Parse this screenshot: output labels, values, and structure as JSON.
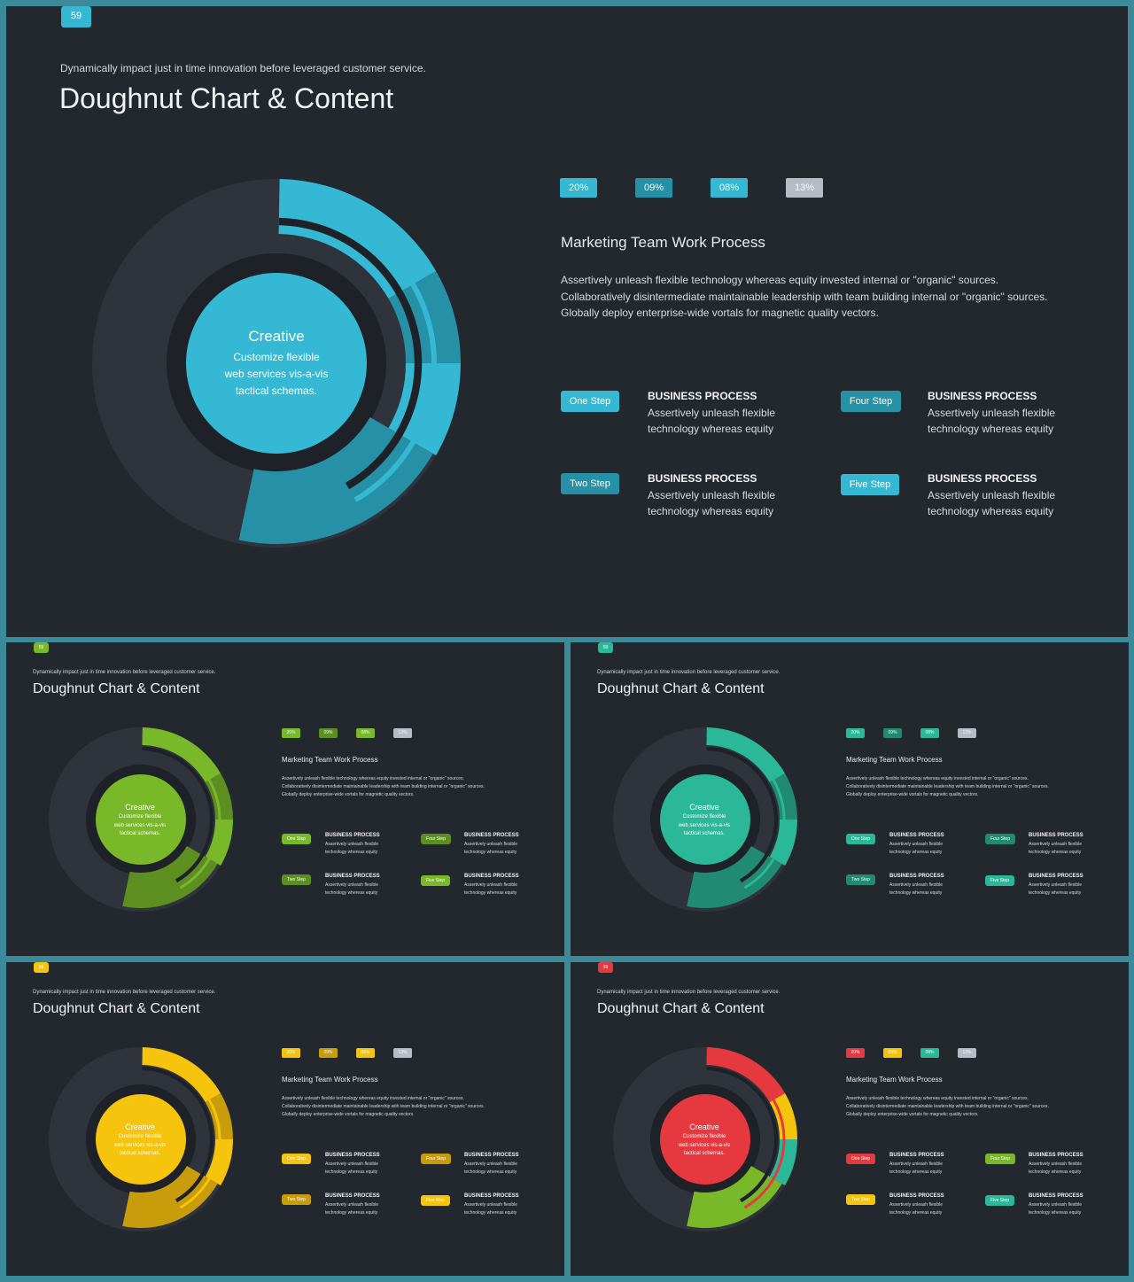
{
  "page_number": "59",
  "subtitle": "Dynamically impact just in time innovation  before leveraged customer service.",
  "title": "Doughnut Chart & Content",
  "percentages": [
    "20%",
    "09%",
    "08%",
    "13%"
  ],
  "section_heading": "Marketing  Team Work Process",
  "paragraph": [
    "Assertively unleash flexible technology whereas equity invested internal or \"organic\" sources.",
    "Collaboratively disintermediate maintainable leadership with team building internal or \"organic\" sources.",
    "Globally deploy enterprise-wide vortals for magnetic quality vectors."
  ],
  "center": {
    "title": "Creative",
    "lines": [
      "Customize flexible",
      "web services vis-a-vis",
      "tactical schemas."
    ]
  },
  "steps": [
    {
      "label": "One Step",
      "title": "BUSINESS PROCESS",
      "desc1": "Assertively unleash flexible",
      "desc2": "technology whereas equity"
    },
    {
      "label": "Four Step",
      "title": "BUSINESS PROCESS",
      "desc1": "Assertively unleash flexible",
      "desc2": "technology whereas equity"
    },
    {
      "label": "Two Step",
      "title": "BUSINESS PROCESS",
      "desc1": "Assertively unleash flexible",
      "desc2": "technology whereas equity"
    },
    {
      "label": "Five Step",
      "title": "BUSINESS PROCESS",
      "desc1": "Assertively unleash flexible",
      "desc2": "technology whereas equity"
    }
  ],
  "chart_data": [
    {
      "type": "pie",
      "variant": "doughnut",
      "slide": "main",
      "colors": [
        "#35b8d3",
        "#2690a6",
        "#35b8d3",
        "#2690a6"
      ],
      "center_color": "#35b8d3",
      "step_colors": [
        "#35b8d3",
        "#2690a6",
        "#2690a6",
        "#35b8d3"
      ],
      "pct_colors": [
        "#35b8d3",
        "#2690a6",
        "#35b8d3",
        "#b6bcc5"
      ],
      "background_ring_color": "#2f333b"
    },
    {
      "type": "pie",
      "variant": "doughnut",
      "slide": "green",
      "colors": [
        "#79b828",
        "#5c8f1f",
        "#79b828",
        "#5c8f1f"
      ],
      "center_color": "#79b828",
      "step_colors": [
        "#79b828",
        "#5c8f1f",
        "#5c8f1f",
        "#79b828"
      ],
      "pct_colors": [
        "#79b828",
        "#5c8f1f",
        "#79b828",
        "#b6bcc5"
      ],
      "background_ring_color": "#2f333b"
    },
    {
      "type": "pie",
      "variant": "doughnut",
      "slide": "teal",
      "colors": [
        "#2bb898",
        "#218a73",
        "#2bb898",
        "#218a73"
      ],
      "center_color": "#2bb898",
      "step_colors": [
        "#2bb898",
        "#218a73",
        "#218a73",
        "#2bb898"
      ],
      "pct_colors": [
        "#2bb898",
        "#218a73",
        "#2bb898",
        "#b6bcc5"
      ],
      "background_ring_color": "#2f333b"
    },
    {
      "type": "pie",
      "variant": "doughnut",
      "slide": "yellow",
      "colors": [
        "#f6c40c",
        "#c89c0a",
        "#f6c40c",
        "#c89c0a"
      ],
      "center_color": "#f6c40c",
      "step_colors": [
        "#f6c40c",
        "#c89c0a",
        "#c89c0a",
        "#f6c40c"
      ],
      "pct_colors": [
        "#f6c40c",
        "#c89c0a",
        "#f6c40c",
        "#b6bcc5"
      ],
      "background_ring_color": "#2f333b"
    },
    {
      "type": "pie",
      "variant": "doughnut",
      "slide": "red",
      "colors": [
        "#e5393f",
        "#f6c40c",
        "#2bb898",
        "#79b828"
      ],
      "center_color": "#e5393f",
      "step_colors": [
        "#e5393f",
        "#79b828",
        "#f6c40c",
        "#2bb898"
      ],
      "pct_colors": [
        "#e5393f",
        "#f6c40c",
        "#2bb898",
        "#b6bcc5"
      ],
      "background_ring_color": "#2f333b"
    }
  ]
}
